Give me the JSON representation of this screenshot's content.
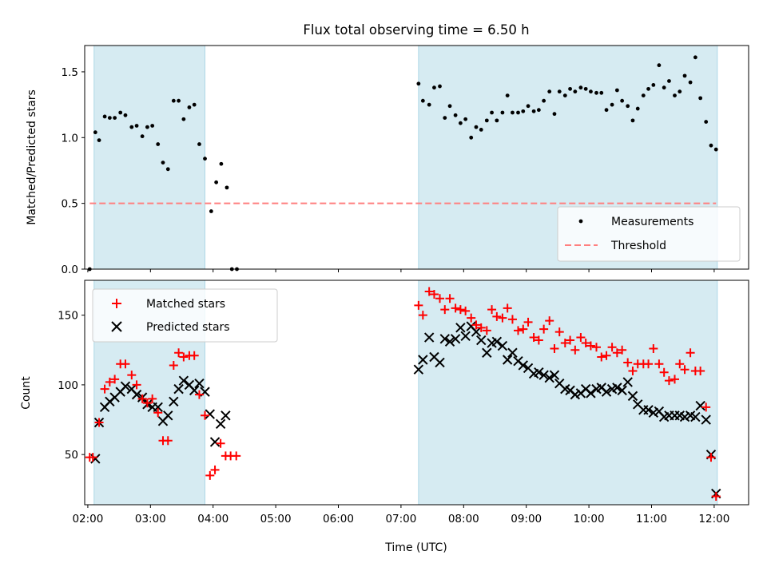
{
  "figure": {
    "title": "Flux total observing time = 6.50 h"
  },
  "chart_data": [
    {
      "type": "scatter",
      "panel": "top",
      "title": "",
      "xlabel": "",
      "ylabel": "Matched/Predicted stars",
      "xlim": [
        1.95,
        12.55
      ],
      "ylim": [
        0,
        1.7
      ],
      "yticks": [
        0.0,
        0.5,
        1.0,
        1.5
      ],
      "ytick_labels": [
        "0.0",
        "0.5",
        "1.0",
        "1.5"
      ],
      "xticks": [
        2,
        3,
        4,
        5,
        6,
        7,
        8,
        9,
        10,
        11,
        12
      ],
      "shaded_spans": [
        [
          2.1,
          3.87
        ],
        [
          7.28,
          12.05
        ]
      ],
      "shade_color": "#add8e6",
      "legend_position": "lower right",
      "series": [
        {
          "name": "Measurements",
          "marker": "dot",
          "color": "#000000",
          "x": [
            2.03,
            2.12,
            2.18,
            2.27,
            2.35,
            2.43,
            2.52,
            2.6,
            2.7,
            2.78,
            2.87,
            2.95,
            3.03,
            3.12,
            3.2,
            3.28,
            3.37,
            3.45,
            3.53,
            3.62,
            3.7,
            3.78,
            3.87,
            3.97,
            4.05,
            4.13,
            4.22,
            4.3,
            4.38,
            7.28,
            7.35,
            7.45,
            7.53,
            7.62,
            7.7,
            7.78,
            7.87,
            7.95,
            8.03,
            8.12,
            8.2,
            8.28,
            8.37,
            8.45,
            8.53,
            8.62,
            8.7,
            8.78,
            8.87,
            8.95,
            9.03,
            9.12,
            9.2,
            9.28,
            9.37,
            9.45,
            9.53,
            9.62,
            9.7,
            9.78,
            9.87,
            9.95,
            10.03,
            10.12,
            10.2,
            10.28,
            10.37,
            10.45,
            10.53,
            10.62,
            10.7,
            10.78,
            10.87,
            10.95,
            11.03,
            11.12,
            11.2,
            11.28,
            11.37,
            11.45,
            11.53,
            11.62,
            11.7,
            11.78,
            11.87,
            11.95,
            12.03
          ],
          "y": [
            0.0,
            1.04,
            0.98,
            1.16,
            1.15,
            1.15,
            1.19,
            1.17,
            1.08,
            1.09,
            1.01,
            1.08,
            1.09,
            0.95,
            0.81,
            0.76,
            1.28,
            1.28,
            1.14,
            1.23,
            1.25,
            0.95,
            0.84,
            0.44,
            0.66,
            0.8,
            0.62,
            0.0,
            0.0,
            1.41,
            1.28,
            1.25,
            1.38,
            1.39,
            1.15,
            1.24,
            1.17,
            1.11,
            1.14,
            1.0,
            1.08,
            1.06,
            1.13,
            1.19,
            1.13,
            1.19,
            1.32,
            1.19,
            1.19,
            1.2,
            1.24,
            1.2,
            1.21,
            1.28,
            1.35,
            1.18,
            1.35,
            1.32,
            1.37,
            1.35,
            1.38,
            1.37,
            1.35,
            1.34,
            1.34,
            1.21,
            1.25,
            1.36,
            1.28,
            1.24,
            1.13,
            1.22,
            1.32,
            1.37,
            1.4,
            1.55,
            1.38,
            1.43,
            1.32,
            1.35,
            1.47,
            1.42,
            1.61,
            1.3,
            1.12,
            0.94,
            0.91
          ]
        },
        {
          "name": "Threshold",
          "marker": "dashed-line",
          "color": "#ff7f7f",
          "x": [
            2.03,
            12.03
          ],
          "y": [
            0.5,
            0.5
          ]
        }
      ]
    },
    {
      "type": "scatter",
      "panel": "bottom",
      "title": "",
      "xlabel": "Time (UTC)",
      "ylabel": "Count",
      "xlim": [
        1.95,
        12.55
      ],
      "ylim": [
        14,
        175
      ],
      "yticks": [
        50,
        100,
        150
      ],
      "ytick_labels": [
        "50",
        "100",
        "150"
      ],
      "xticks": [
        2,
        3,
        4,
        5,
        6,
        7,
        8,
        9,
        10,
        11,
        12
      ],
      "xtick_labels": [
        "02:00",
        "03:00",
        "04:00",
        "05:00",
        "06:00",
        "07:00",
        "08:00",
        "09:00",
        "10:00",
        "11:00",
        "12:00"
      ],
      "shaded_spans": [
        [
          2.1,
          3.87
        ],
        [
          7.28,
          12.05
        ]
      ],
      "shade_color": "#add8e6",
      "legend_position": "upper left",
      "series": [
        {
          "name": "Matched stars",
          "marker": "plus",
          "color": "#ff0000",
          "x": [
            2.03,
            2.08,
            2.18,
            2.27,
            2.35,
            2.43,
            2.52,
            2.6,
            2.7,
            2.78,
            2.87,
            2.95,
            3.03,
            3.12,
            3.2,
            3.28,
            3.37,
            3.45,
            3.53,
            3.62,
            3.7,
            3.78,
            3.87,
            3.95,
            4.03,
            4.12,
            4.2,
            4.28,
            4.37,
            7.28,
            7.35,
            7.45,
            7.53,
            7.62,
            7.7,
            7.78,
            7.87,
            7.95,
            8.03,
            8.12,
            8.2,
            8.28,
            8.37,
            8.45,
            8.53,
            8.62,
            8.7,
            8.78,
            8.87,
            8.95,
            9.03,
            9.12,
            9.2,
            9.28,
            9.37,
            9.45,
            9.53,
            9.62,
            9.7,
            9.78,
            9.87,
            9.95,
            10.03,
            10.12,
            10.2,
            10.28,
            10.37,
            10.45,
            10.53,
            10.62,
            10.7,
            10.78,
            10.87,
            10.95,
            11.03,
            11.12,
            11.2,
            11.28,
            11.37,
            11.45,
            11.53,
            11.62,
            11.7,
            11.78,
            11.87,
            11.95,
            12.03
          ],
          "y": [
            48,
            48,
            73,
            97,
            102,
            104,
            115,
            115,
            107,
            100,
            90,
            87,
            90,
            80,
            60,
            60,
            114,
            123,
            120,
            121,
            121,
            93,
            78,
            35,
            39,
            58,
            49,
            49,
            49,
            157,
            150,
            167,
            165,
            162,
            154,
            162,
            155,
            154,
            153,
            148,
            143,
            141,
            139,
            154,
            149,
            148,
            155,
            147,
            139,
            140,
            145,
            134,
            132,
            140,
            146,
            126,
            138,
            130,
            132,
            125,
            134,
            130,
            128,
            127,
            120,
            121,
            127,
            123,
            125,
            116,
            110,
            115,
            115,
            115,
            126,
            115,
            109,
            103,
            104,
            115,
            111,
            123,
            110,
            110,
            84,
            48,
            20
          ]
        },
        {
          "name": "Predicted stars",
          "marker": "x",
          "color": "#000000",
          "x": [
            2.12,
            2.18,
            2.27,
            2.35,
            2.43,
            2.52,
            2.6,
            2.7,
            2.78,
            2.87,
            2.95,
            3.03,
            3.12,
            3.2,
            3.28,
            3.37,
            3.45,
            3.53,
            3.62,
            3.7,
            3.78,
            3.87,
            3.95,
            4.03,
            4.12,
            4.2,
            7.28,
            7.35,
            7.45,
            7.53,
            7.62,
            7.7,
            7.78,
            7.87,
            7.95,
            8.03,
            8.12,
            8.2,
            8.28,
            8.37,
            8.45,
            8.53,
            8.62,
            8.7,
            8.78,
            8.87,
            8.95,
            9.03,
            9.12,
            9.2,
            9.28,
            9.37,
            9.45,
            9.53,
            9.62,
            9.7,
            9.78,
            9.87,
            9.95,
            10.03,
            10.12,
            10.2,
            10.28,
            10.37,
            10.45,
            10.53,
            10.62,
            10.7,
            10.78,
            10.87,
            10.95,
            11.03,
            11.12,
            11.2,
            11.28,
            11.37,
            11.45,
            11.53,
            11.62,
            11.7,
            11.78,
            11.87,
            11.95,
            12.03
          ],
          "y": [
            47,
            73,
            84,
            88,
            91,
            95,
            99,
            97,
            93,
            91,
            86,
            84,
            84,
            74,
            78,
            88,
            97,
            103,
            100,
            96,
            101,
            95,
            79,
            59,
            72,
            78,
            111,
            118,
            134,
            120,
            116,
            133,
            131,
            133,
            141,
            135,
            142,
            138,
            132,
            123,
            130,
            131,
            128,
            118,
            123,
            117,
            114,
            112,
            108,
            109,
            107,
            105,
            107,
            101,
            97,
            96,
            93,
            94,
            97,
            94,
            97,
            98,
            95,
            97,
            98,
            96,
            102,
            92,
            86,
            82,
            82,
            80,
            81,
            77,
            78,
            78,
            78,
            77,
            78,
            77,
            85,
            75,
            50,
            22
          ]
        }
      ]
    }
  ]
}
